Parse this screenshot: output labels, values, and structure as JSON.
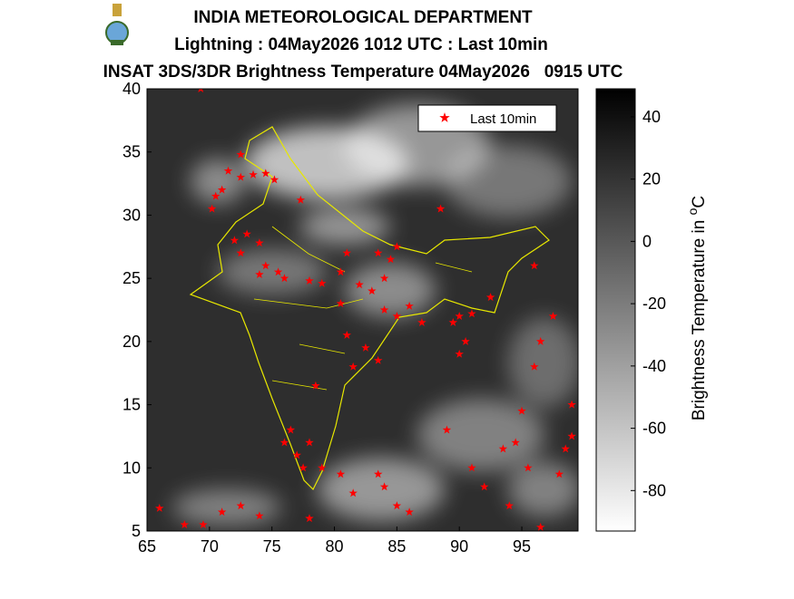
{
  "header": {
    "org": "INDIA METEOROLOGICAL DEPARTMENT",
    "line2": "Lightning : 04May2026 1012 UTC : Last 10min",
    "line3": "INSAT 3DS/3DR Brightness Temperature 04May2026   0915 UTC"
  },
  "chart_data": {
    "type": "map",
    "xlim": [
      65,
      99.5
    ],
    "ylim": [
      5,
      40
    ],
    "xticks": [
      65,
      70,
      75,
      80,
      85,
      90,
      95
    ],
    "yticks": [
      5,
      10,
      15,
      20,
      25,
      30,
      35,
      40
    ],
    "legend": "top-right",
    "colorbar": {
      "label": "Brightness Temperature in",
      "unit_sup": "o",
      "unit": "C",
      "clim": [
        -93,
        49
      ],
      "ticks": [
        40,
        20,
        0,
        -20,
        -40,
        -60,
        -80
      ]
    },
    "series": [
      {
        "name": "Last 10min",
        "color": "#ff0000",
        "x": [
          69.3,
          71.5,
          72.5,
          73.5,
          74.5,
          75.2,
          70.5,
          70.2,
          71,
          72.5,
          77.3,
          72,
          73,
          74,
          72.5,
          74.5,
          75.5,
          76,
          74,
          78,
          79,
          80.5,
          81,
          82,
          83,
          84,
          84.5,
          85,
          83.5,
          84,
          85,
          86,
          87,
          89.5,
          90,
          91,
          80.5,
          81,
          82.5,
          83.5,
          81.5,
          90,
          90.5,
          78.5,
          76,
          77,
          78,
          76.5,
          77.5,
          79,
          80.5,
          81.5,
          84,
          83.5,
          85,
          86,
          66,
          68,
          69.5,
          71,
          72.5,
          74,
          78,
          92,
          91,
          93.5,
          94.5,
          95.5,
          96,
          95,
          96.5,
          97.5,
          98.5,
          99,
          98,
          99,
          89,
          96.5,
          94,
          92.5,
          96,
          88.5
        ],
        "y": [
          40,
          33.5,
          33,
          33.2,
          33.3,
          32.8,
          31.5,
          30.5,
          32,
          34.8,
          31.2,
          28,
          28.5,
          27.8,
          27,
          26,
          25.5,
          25,
          25.3,
          24.8,
          24.6,
          25.5,
          27,
          24.5,
          24,
          25,
          26.5,
          27.5,
          27,
          22.5,
          22,
          22.8,
          21.5,
          21.5,
          22,
          22.2,
          23,
          20.5,
          19.5,
          18.5,
          18,
          19,
          20,
          16.5,
          12,
          11,
          12,
          13,
          10,
          10,
          9.5,
          8,
          8.5,
          9.5,
          7,
          6.5,
          6.8,
          5.5,
          5.5,
          6.5,
          7,
          6.2,
          6,
          8.5,
          10,
          11.5,
          12,
          10,
          18,
          14.5,
          20,
          22,
          11.5,
          12.5,
          9.5,
          15,
          13,
          5.3,
          7,
          23.5,
          26,
          30.5
        ]
      }
    ]
  }
}
